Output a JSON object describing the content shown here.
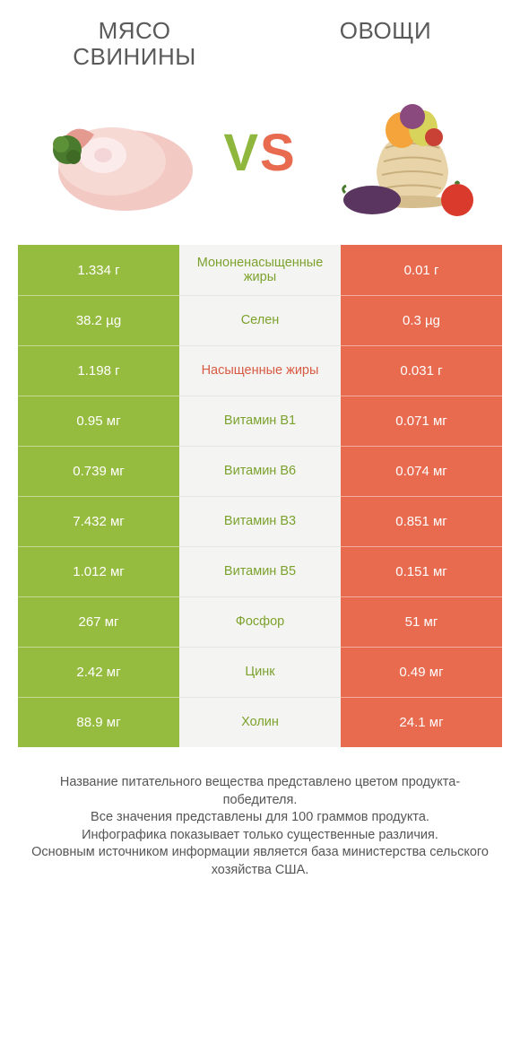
{
  "colors": {
    "left": "#96bc3f",
    "right": "#e86a4f",
    "mid_bg": "#f4f4f2",
    "label_winner_left": "#7ca22e",
    "label_winner_right": "#d85a42"
  },
  "titles": {
    "left": "МЯСО СВИНИНЫ",
    "right": "ОВОЩИ"
  },
  "vs": {
    "v": "V",
    "s": "S"
  },
  "rows": [
    {
      "label": "Мононенасыщенные жиры",
      "left": "1.334 г",
      "right": "0.01 г",
      "winner": "left"
    },
    {
      "label": "Селен",
      "left": "38.2 µg",
      "right": "0.3 µg",
      "winner": "left"
    },
    {
      "label": "Насыщенные жиры",
      "left": "1.198 г",
      "right": "0.031 г",
      "winner": "right"
    },
    {
      "label": "Витамин B1",
      "left": "0.95 мг",
      "right": "0.071 мг",
      "winner": "left"
    },
    {
      "label": "Витамин B6",
      "left": "0.739 мг",
      "right": "0.074 мг",
      "winner": "left"
    },
    {
      "label": "Витамин B3",
      "left": "7.432 мг",
      "right": "0.851 мг",
      "winner": "left"
    },
    {
      "label": "Витамин B5",
      "left": "1.012 мг",
      "right": "0.151 мг",
      "winner": "left"
    },
    {
      "label": "Фосфор",
      "left": "267 мг",
      "right": "51 мг",
      "winner": "left"
    },
    {
      "label": "Цинк",
      "left": "2.42 мг",
      "right": "0.49 мг",
      "winner": "left"
    },
    {
      "label": "Холин",
      "left": "88.9 мг",
      "right": "24.1 мг",
      "winner": "left"
    }
  ],
  "footer": {
    "l1": "Название питательного вещества представлено цветом продукта-победителя.",
    "l2": "Все значения представлены для 100 граммов продукта.",
    "l3": "Инфографика показывает только существенные различия.",
    "l4": "Основным источником информации является база министерства сельского хозяйства США."
  }
}
